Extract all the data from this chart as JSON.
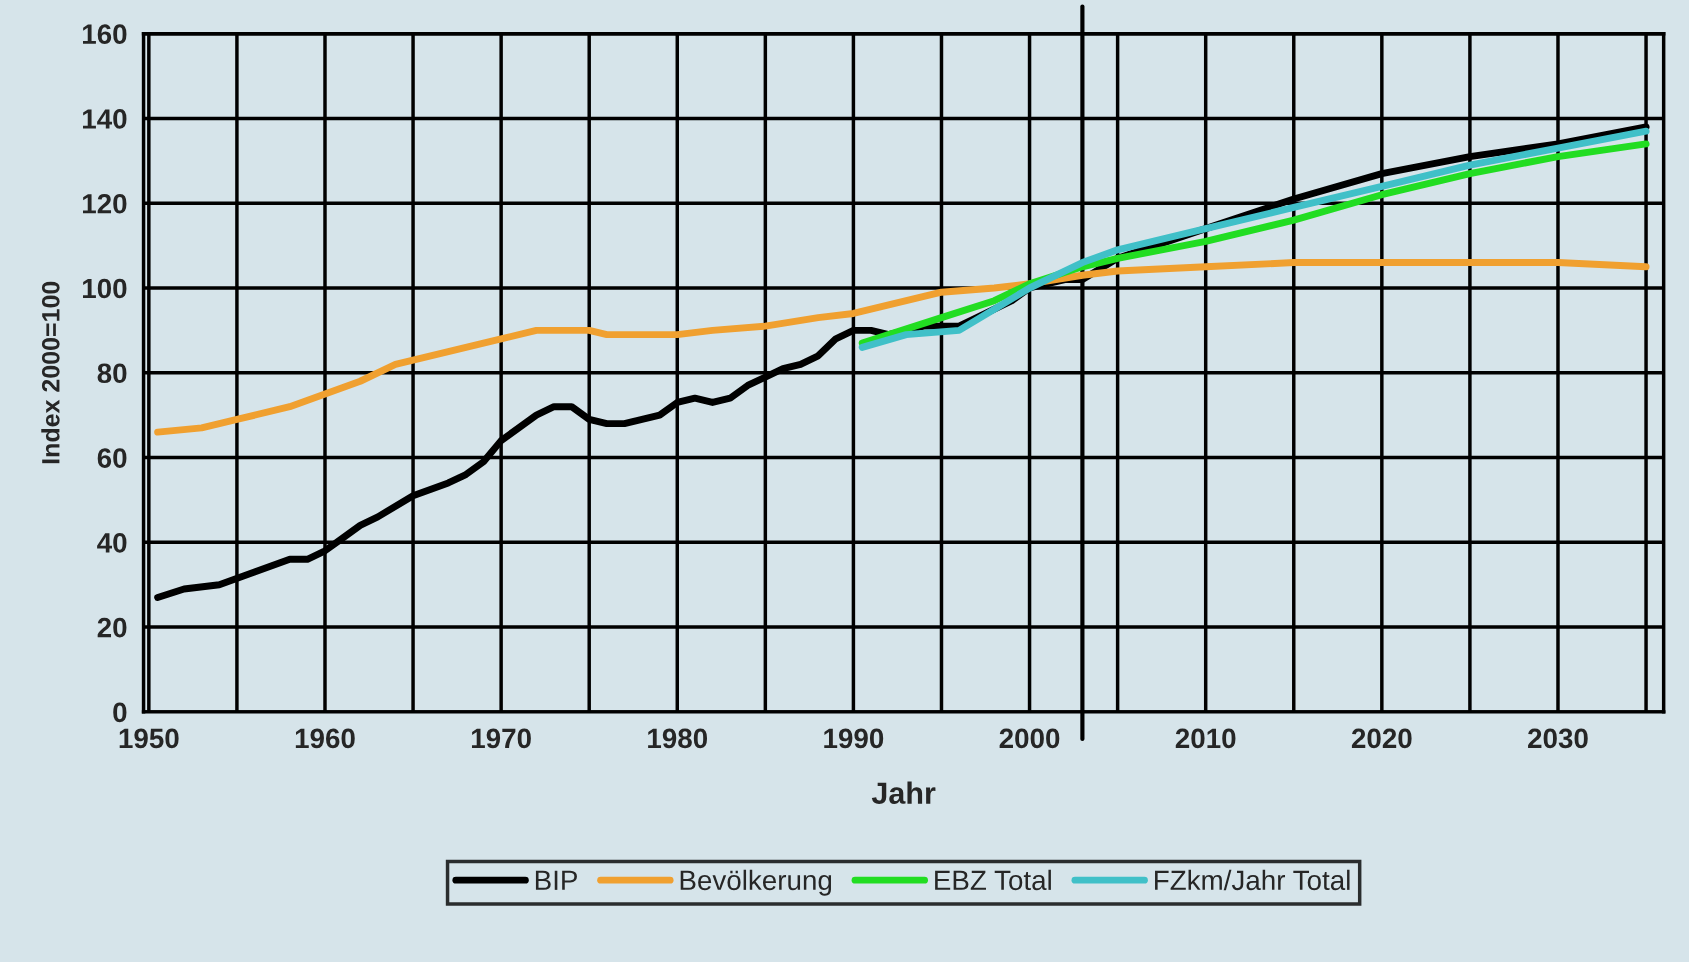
{
  "chart_data": {
    "type": "line",
    "xlabel": "Jahr",
    "ylabel": "Index 2000=100",
    "xlim": [
      1949.7,
      2036
    ],
    "ylim": [
      0,
      160
    ],
    "xticks": [
      1950,
      {
        "value": 1955,
        "label": null
      },
      1960,
      {
        "value": 1965,
        "label": null
      },
      1970,
      {
        "value": 1975,
        "label": null
      },
      1980,
      {
        "value": 1985,
        "label": null
      },
      1990,
      {
        "value": 1995,
        "label": null
      },
      2000,
      {
        "value": 2005,
        "label": null
      },
      2010,
      {
        "value": 2015,
        "label": null
      },
      2020,
      {
        "value": 2025,
        "label": null
      },
      2030,
      {
        "value": 2035,
        "label": null
      }
    ],
    "yticks": [
      0,
      20,
      40,
      60,
      80,
      100,
      120,
      140,
      160
    ],
    "grid": true,
    "legend": "bottom",
    "ref_lines": [
      {
        "axis": "x",
        "value": 2003,
        "color": "#000000"
      }
    ],
    "series": [
      {
        "name": "BIP",
        "color": "#000000",
        "x": [
          1950.5,
          1952,
          1954,
          1956,
          1958,
          1959,
          1960,
          1961,
          1962,
          1963,
          1965,
          1967,
          1968,
          1969,
          1970,
          1971,
          1972,
          1973,
          1974,
          1975,
          1976,
          1977,
          1978,
          1979,
          1980,
          1981,
          1982,
          1983,
          1984,
          1985,
          1986,
          1987,
          1988,
          1989,
          1990,
          1991,
          1992,
          1994,
          1995,
          1996,
          1997,
          1998,
          1999,
          2000,
          2002,
          2003,
          2005,
          2010,
          2015,
          2020,
          2025,
          2030,
          2035
        ],
        "values": [
          27,
          29,
          30,
          33,
          36,
          36,
          38,
          41,
          44,
          46,
          51,
          54,
          56,
          59,
          64,
          67,
          70,
          72,
          72,
          69,
          68,
          68,
          69,
          70,
          73,
          74,
          73,
          74,
          77,
          79,
          81,
          82,
          84,
          88,
          90,
          90,
          89,
          91,
          91,
          91,
          93,
          95,
          97,
          100,
          102,
          102,
          107,
          114,
          121,
          127,
          131,
          134,
          138
        ]
      },
      {
        "name": "Bevölkerung",
        "color": "#f0a030",
        "x": [
          1950.5,
          1953,
          1955,
          1958,
          1960,
          1962,
          1964,
          1965,
          1967,
          1969,
          1970,
          1972,
          1974,
          1975,
          1976,
          1978,
          1980,
          1982,
          1985,
          1988,
          1990,
          1992,
          1995,
          1998,
          2000,
          2003,
          2005,
          2010,
          2015,
          2020,
          2025,
          2030,
          2035
        ],
        "values": [
          66,
          67,
          69,
          72,
          75,
          78,
          82,
          83,
          85,
          87,
          88,
          90,
          90,
          90,
          89,
          89,
          89,
          90,
          91,
          93,
          94,
          96,
          99,
          100,
          101,
          103,
          104,
          105,
          106,
          106,
          106,
          106,
          105
        ]
      },
      {
        "name": "EBZ Total",
        "color": "#22dd22",
        "x": [
          1990.5,
          1992,
          1995,
          1998,
          2000,
          2003,
          2005,
          2010,
          2015,
          2020,
          2025,
          2030,
          2035
        ],
        "values": [
          87,
          89,
          93,
          97,
          101,
          105,
          107,
          111,
          116,
          122,
          127,
          131,
          134
        ]
      },
      {
        "name": "FZkm/Jahr Total",
        "color": "#40c0c8",
        "x": [
          1990.5,
          1993,
          1996,
          1998,
          2000,
          2003,
          2005,
          2010,
          2015,
          2020,
          2025,
          2030,
          2035
        ],
        "values": [
          86,
          89,
          90,
          95,
          100,
          106,
          109,
          114,
          119,
          124,
          129,
          133,
          137
        ]
      }
    ]
  }
}
